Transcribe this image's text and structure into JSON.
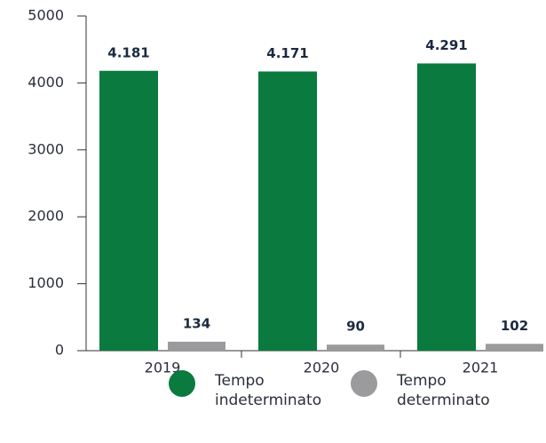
{
  "chart_data": {
    "type": "bar",
    "categories": [
      "2019",
      "2020",
      "2021"
    ],
    "series": [
      {
        "name": "Tempo indeterminato",
        "color": "#0a7a3e",
        "values": [
          4181,
          4171,
          4291
        ],
        "value_labels": [
          "4.181",
          "4.171",
          "4.291"
        ]
      },
      {
        "name": "Tempo determinato",
        "color": "#9b9b9d",
        "values": [
          134,
          90,
          102
        ]
      }
    ],
    "ylim": [
      0,
      5000
    ],
    "yticks": [
      0,
      1000,
      2000,
      3000,
      4000,
      5000
    ]
  }
}
